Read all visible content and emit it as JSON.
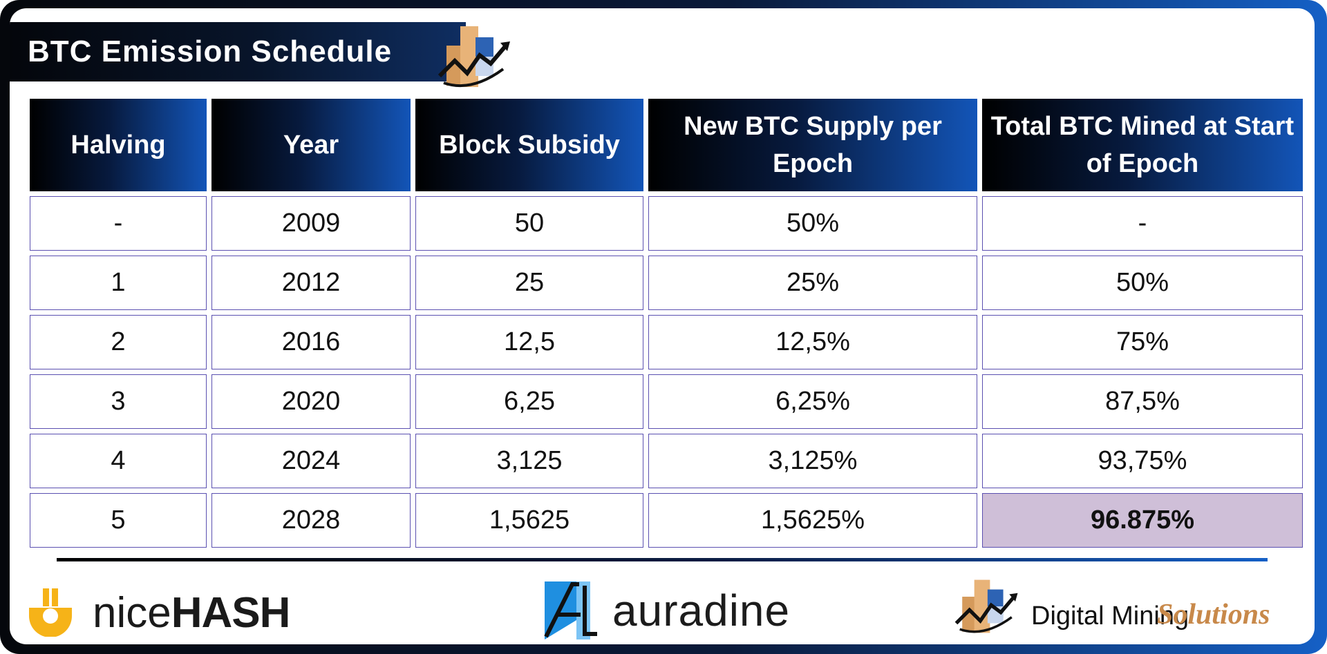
{
  "header": {
    "title": "BTC Emission Schedule"
  },
  "table": {
    "columns": [
      "Halving",
      "Year",
      "Block Subsidy",
      "New BTC Supply per Epoch",
      "Total BTC Mined at Start of Epoch"
    ],
    "rows": [
      [
        "-",
        "2009",
        "50",
        "50%",
        "-"
      ],
      [
        "1",
        "2012",
        "25",
        "25%",
        "50%"
      ],
      [
        "2",
        "2016",
        "12,5",
        "12,5%",
        "75%"
      ],
      [
        "3",
        "2020",
        "6,25",
        "6,25%",
        "87,5%"
      ],
      [
        "4",
        "2024",
        "3,125",
        "3,125%",
        "93,75%"
      ],
      [
        "5",
        "2028",
        "1,5625",
        "1,5625%",
        "96.875%"
      ]
    ],
    "highlight_color": "#cfbfd8"
  },
  "footer": {
    "nicehash": {
      "part1": "nice",
      "part2": "HASH",
      "accent": "#f6b318"
    },
    "auradine": {
      "name": "auradine",
      "accent": "#1f8fe0"
    },
    "dms": {
      "part1": "Digital Mining",
      "part2": "Solutions",
      "accent": "#c8894a"
    }
  },
  "colors": {
    "header_dark": "#000000",
    "header_blue": "#1355b8",
    "cell_border": "#5a4fb0"
  }
}
